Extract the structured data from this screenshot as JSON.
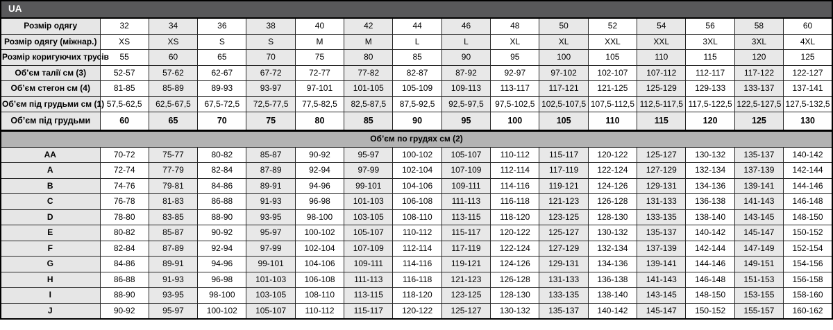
{
  "colors": {
    "header_bar_bg": "#58585a",
    "header_bar_text": "#ffffff",
    "label_cell_bg": "#e6e6e6",
    "alt_column_bg": "#e8e8e8",
    "section_header_bg": "#b3b3b3",
    "border": "#000000"
  },
  "header": {
    "title": "UA"
  },
  "table": {
    "info_rows": [
      {
        "label": "Розмір одягу",
        "bold": false,
        "values": [
          "32",
          "34",
          "36",
          "38",
          "40",
          "42",
          "44",
          "46",
          "48",
          "50",
          "52",
          "54",
          "56",
          "58",
          "60"
        ]
      },
      {
        "label": "Розмір одягу (міжнар.)",
        "bold": false,
        "values": [
          "XS",
          "XS",
          "S",
          "S",
          "M",
          "M",
          "L",
          "L",
          "XL",
          "XL",
          "XXL",
          "XXL",
          "3XL",
          "3XL",
          "4XL"
        ]
      },
      {
        "label": "Розмір коригуючих трусів",
        "bold": false,
        "values": [
          "55",
          "60",
          "65",
          "70",
          "75",
          "80",
          "85",
          "90",
          "95",
          "100",
          "105",
          "110",
          "115",
          "120",
          "125"
        ]
      },
      {
        "label": "Об’єм талії см (3)",
        "bold": false,
        "values": [
          "52-57",
          "57-62",
          "62-67",
          "67-72",
          "72-77",
          "77-82",
          "82-87",
          "87-92",
          "92-97",
          "97-102",
          "102-107",
          "107-112",
          "112-117",
          "117-122",
          "122-127"
        ]
      },
      {
        "label": "Об’єм стегон см (4)",
        "bold": false,
        "values": [
          "81-85",
          "85-89",
          "89-93",
          "93-97",
          "97-101",
          "101-105",
          "105-109",
          "109-113",
          "113-117",
          "117-121",
          "121-125",
          "125-129",
          "129-133",
          "133-137",
          "137-141"
        ]
      },
      {
        "label": "Об’єм під грудьми см (1)",
        "bold": false,
        "values": [
          "57,5-62,5",
          "62,5-67,5",
          "67,5-72,5",
          "72,5-77,5",
          "77,5-82,5",
          "82,5-87,5",
          "87,5-92,5",
          "92,5-97,5",
          "97,5-102,5",
          "102,5-107,5",
          "107,5-112,5",
          "112,5-117,5",
          "117,5-122,5",
          "122,5-127,5",
          "127,5-132,5"
        ]
      },
      {
        "label": "Об’єм під грудьми",
        "bold": true,
        "values": [
          "60",
          "65",
          "70",
          "75",
          "80",
          "85",
          "90",
          "95",
          "100",
          "105",
          "110",
          "115",
          "120",
          "125",
          "130"
        ]
      }
    ],
    "section_header": "Об’єм по грудях см (2)",
    "cup_rows": [
      {
        "label": "AA",
        "values": [
          "70-72",
          "75-77",
          "80-82",
          "85-87",
          "90-92",
          "95-97",
          "100-102",
          "105-107",
          "110-112",
          "115-117",
          "120-122",
          "125-127",
          "130-132",
          "135-137",
          "140-142"
        ]
      },
      {
        "label": "A",
        "values": [
          "72-74",
          "77-79",
          "82-84",
          "87-89",
          "92-94",
          "97-99",
          "102-104",
          "107-109",
          "112-114",
          "117-119",
          "122-124",
          "127-129",
          "132-134",
          "137-139",
          "142-144"
        ]
      },
      {
        "label": "B",
        "values": [
          "74-76",
          "79-81",
          "84-86",
          "89-91",
          "94-96",
          "99-101",
          "104-106",
          "109-111",
          "114-116",
          "119-121",
          "124-126",
          "129-131",
          "134-136",
          "139-141",
          "144-146"
        ]
      },
      {
        "label": "C",
        "values": [
          "76-78",
          "81-83",
          "86-88",
          "91-93",
          "96-98",
          "101-103",
          "106-108",
          "111-113",
          "116-118",
          "121-123",
          "126-128",
          "131-133",
          "136-138",
          "141-143",
          "146-148"
        ]
      },
      {
        "label": "D",
        "values": [
          "78-80",
          "83-85",
          "88-90",
          "93-95",
          "98-100",
          "103-105",
          "108-110",
          "113-115",
          "118-120",
          "123-125",
          "128-130",
          "133-135",
          "138-140",
          "143-145",
          "148-150"
        ]
      },
      {
        "label": "E",
        "values": [
          "80-82",
          "85-87",
          "90-92",
          "95-97",
          "100-102",
          "105-107",
          "110-112",
          "115-117",
          "120-122",
          "125-127",
          "130-132",
          "135-137",
          "140-142",
          "145-147",
          "150-152"
        ]
      },
      {
        "label": "F",
        "values": [
          "82-84",
          "87-89",
          "92-94",
          "97-99",
          "102-104",
          "107-109",
          "112-114",
          "117-119",
          "122-124",
          "127-129",
          "132-134",
          "137-139",
          "142-144",
          "147-149",
          "152-154"
        ]
      },
      {
        "label": "G",
        "values": [
          "84-86",
          "89-91",
          "94-96",
          "99-101",
          "104-106",
          "109-111",
          "114-116",
          "119-121",
          "124-126",
          "129-131",
          "134-136",
          "139-141",
          "144-146",
          "149-151",
          "154-156"
        ]
      },
      {
        "label": "H",
        "values": [
          "86-88",
          "91-93",
          "96-98",
          "101-103",
          "106-108",
          "111-113",
          "116-118",
          "121-123",
          "126-128",
          "131-133",
          "136-138",
          "141-143",
          "146-148",
          "151-153",
          "156-158"
        ]
      },
      {
        "label": "I",
        "values": [
          "88-90",
          "93-95",
          "98-100",
          "103-105",
          "108-110",
          "113-115",
          "118-120",
          "123-125",
          "128-130",
          "133-135",
          "138-140",
          "143-145",
          "148-150",
          "153-155",
          "158-160"
        ]
      },
      {
        "label": "J",
        "values": [
          "90-92",
          "95-97",
          "100-102",
          "105-107",
          "110-112",
          "115-117",
          "120-122",
          "125-127",
          "130-132",
          "135-137",
          "140-142",
          "145-147",
          "150-152",
          "155-157",
          "160-162"
        ]
      }
    ]
  }
}
